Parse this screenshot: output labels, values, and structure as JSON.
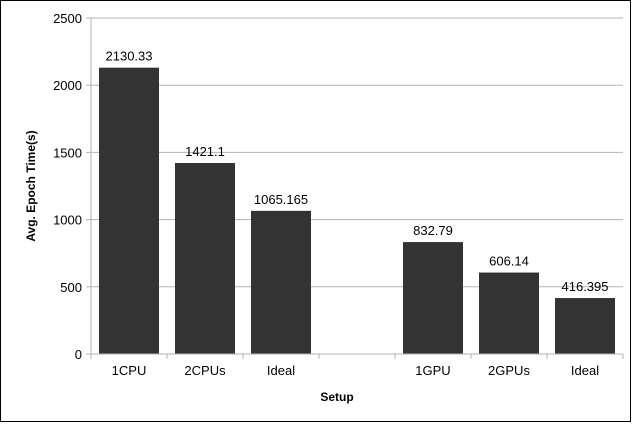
{
  "chart_data": {
    "type": "bar",
    "title": "",
    "xlabel": "Setup",
    "ylabel": "Avg. Epoch Time(s)",
    "categories": [
      "1CPU",
      "2CPUs",
      "Ideal",
      "",
      "1GPU",
      "2GPUs",
      "Ideal"
    ],
    "values": [
      2130.33,
      1421.1,
      1065.165,
      null,
      832.79,
      606.14,
      416.395
    ],
    "data_labels": [
      "2130.33",
      "1421.1",
      "1065.165",
      "",
      "832.79",
      "606.14",
      "416.395"
    ],
    "ylim": [
      0,
      2500
    ],
    "yticks": [
      "0",
      "500",
      "1000",
      "1500",
      "2000",
      "2500"
    ],
    "grid": "horizontal",
    "legend": "none",
    "bar_color": "#333333",
    "grid_color": "#b3b3b3"
  }
}
